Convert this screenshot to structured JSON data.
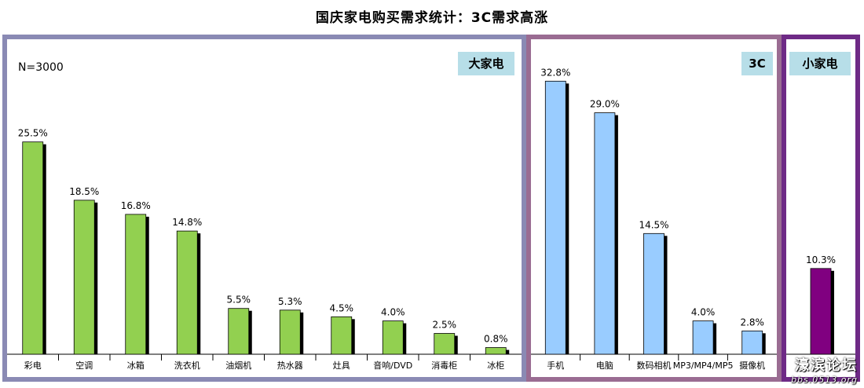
{
  "title": "国庆家电购买需求统计：3C需求高涨",
  "sample_note": "N=3000",
  "watermark": {
    "text": "濠滨论坛",
    "url_text": "bbs.0513.org"
  },
  "chart_data": [
    {
      "type": "bar",
      "group_label": "大家电",
      "categories": [
        "彩电",
        "空调",
        "冰箱",
        "洗衣机",
        "油烟机",
        "热水器",
        "灶具",
        "音响/DVD",
        "消毒柜",
        "冰柜"
      ],
      "values": [
        25.5,
        18.5,
        16.8,
        14.8,
        5.5,
        5.3,
        4.5,
        4.0,
        2.5,
        0.8
      ],
      "value_labels": [
        "25.5%",
        "18.5%",
        "16.8%",
        "14.8%",
        "5.5%",
        "5.3%",
        "4.5%",
        "4.0%",
        "2.5%",
        "0.8%"
      ],
      "color": "#92d050",
      "ylim": [
        0,
        35
      ]
    },
    {
      "type": "bar",
      "group_label": "3C",
      "categories": [
        "手机",
        "电脑",
        "数码相机",
        "MP3/MP4/MP5",
        "摄像机"
      ],
      "values": [
        32.8,
        29.0,
        14.5,
        4.0,
        2.8
      ],
      "value_labels": [
        "32.8%",
        "29.0%",
        "14.5%",
        "4.0%",
        "2.8%"
      ],
      "color": "#99ccff",
      "ylim": [
        0,
        35
      ]
    },
    {
      "type": "bar",
      "group_label": "小家电",
      "categories": [
        ""
      ],
      "values": [
        10.3
      ],
      "value_labels": [
        "10.3%"
      ],
      "color": "#800080",
      "ylim": [
        0,
        35
      ]
    }
  ]
}
